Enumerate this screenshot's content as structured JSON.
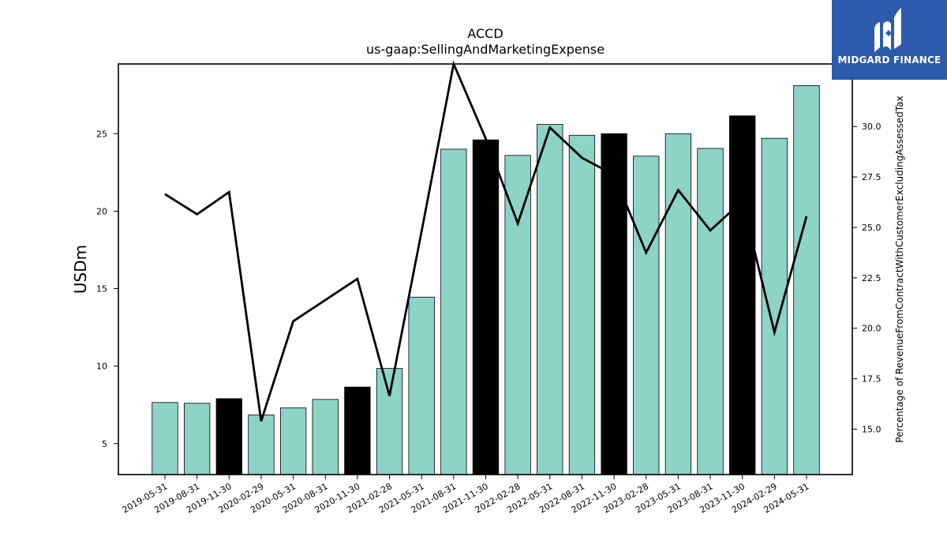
{
  "logo": {
    "text": "MIDGARD FINANCE",
    "background": "#2c5aad"
  },
  "chart_data": {
    "type": "bar",
    "title": "ACCD",
    "subtitle": "us-gaap:SellingAndMarketingExpense",
    "ylabel": "USDm",
    "y2label": "Percentage of RevenueFromContractWithCustomerExcludingAssessedTax",
    "ylim": [
      3,
      29.5
    ],
    "y2lim": [
      12.75,
      33.1
    ],
    "yticks": [
      5,
      10,
      15,
      20,
      25
    ],
    "y2ticks": [
      15.0,
      17.5,
      20.0,
      22.5,
      25.0,
      27.5,
      30.0
    ],
    "y2tick_labels": [
      "15.0",
      "17.5",
      "20.0",
      "22.5",
      "25.0",
      "27.5",
      "30.0"
    ],
    "categories": [
      "2019-05-31",
      "2019-08-31",
      "2019-11-30",
      "2020-02-29",
      "2020-05-31",
      "2020-08-31",
      "2020-11-30",
      "2021-02-28",
      "2021-05-31",
      "2021-08-31",
      "2021-11-30",
      "2022-02-28",
      "2022-05-31",
      "2022-08-31",
      "2022-11-30",
      "2023-02-28",
      "2023-05-31",
      "2023-08-31",
      "2023-11-30",
      "2024-02-29",
      "2024-05-31"
    ],
    "series": [
      {
        "kind": "bar",
        "axis": "left",
        "values": [
          7.65,
          7.6,
          7.9,
          6.85,
          7.3,
          7.85,
          8.65,
          9.85,
          14.45,
          24.0,
          24.6,
          23.6,
          25.6,
          24.9,
          25.0,
          23.55,
          25.0,
          24.05,
          26.15,
          24.7,
          28.1
        ],
        "highlight": [
          false,
          false,
          true,
          false,
          false,
          false,
          true,
          false,
          false,
          false,
          true,
          false,
          false,
          false,
          true,
          false,
          false,
          false,
          true,
          false,
          false
        ]
      },
      {
        "kind": "line",
        "axis": "right",
        "values": [
          26.65,
          25.65,
          26.75,
          15.4,
          20.35,
          21.4,
          22.45,
          16.65,
          24.8,
          33.1,
          29.4,
          25.2,
          29.95,
          28.45,
          27.6,
          23.75,
          26.85,
          24.85,
          26.3,
          19.8,
          25.55
        ]
      }
    ],
    "colors": {
      "bar": "#8dd3c7",
      "bar_highlight": "#000000",
      "bar_edge": "#000000",
      "line": "#000000"
    },
    "grid": false,
    "legend": "none"
  }
}
